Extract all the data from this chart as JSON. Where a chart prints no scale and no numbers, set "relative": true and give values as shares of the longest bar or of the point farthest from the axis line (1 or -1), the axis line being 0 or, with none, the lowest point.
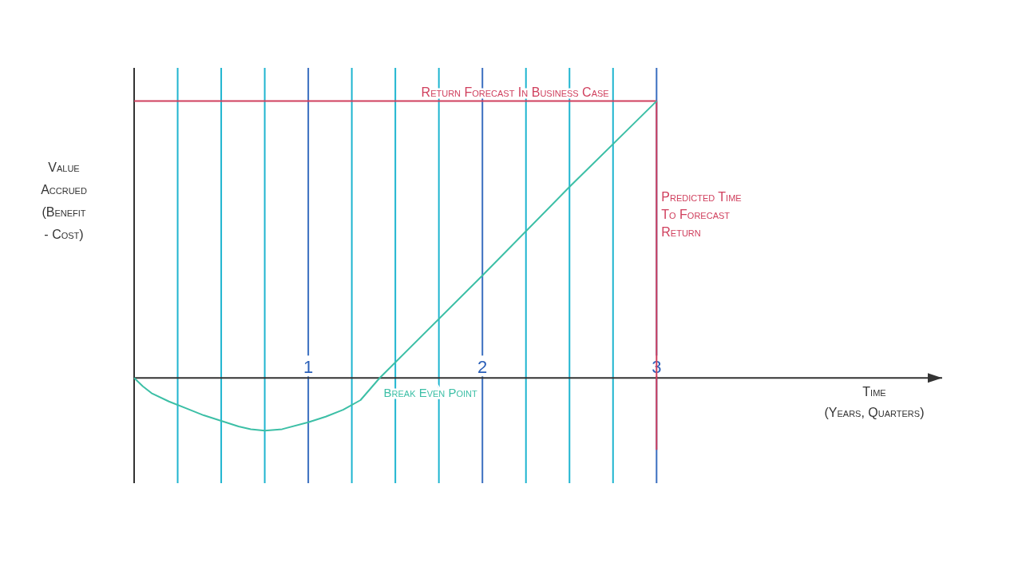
{
  "chart_data": {
    "type": "line",
    "relative": true,
    "xlabel": "Time (Years, Quarters)",
    "ylabel": "Value Accrued (Benefit - Cost)",
    "xlim": [
      0,
      4.64
    ],
    "xticks": [
      {
        "value": 0.25,
        "label": null
      },
      {
        "value": 0.5,
        "label": null
      },
      {
        "value": 0.75,
        "label": null
      },
      1,
      {
        "value": 1.25,
        "label": null
      },
      {
        "value": 1.5,
        "label": null
      },
      {
        "value": 1.75,
        "label": null
      },
      2,
      {
        "value": 2.25,
        "label": null
      },
      {
        "value": 2.5,
        "label": null
      },
      {
        "value": 2.75,
        "label": null
      },
      3
    ],
    "grid": "x",
    "marker": "none",
    "line_style": "solid",
    "series": [
      {
        "color": "#3cbfa6",
        "x": [
          0,
          0.05,
          0.1,
          0.2,
          0.3,
          0.4,
          0.5,
          0.6,
          0.67,
          0.75,
          0.85,
          1,
          1.1,
          1.2,
          1.3,
          1.41,
          2,
          2.5,
          3
        ],
        "values": [
          0,
          -0.03,
          -0.055,
          -0.085,
          -0.11,
          -0.135,
          -0.155,
          -0.175,
          -0.185,
          -0.19,
          -0.185,
          -0.16,
          -0.14,
          -0.115,
          -0.08,
          0,
          0.37,
          0.69,
          1
        ]
      }
    ],
    "ref_lines": [
      {
        "axis": "y",
        "value": 1,
        "label": "Return Forecast In Business Case",
        "color": "#d0405e"
      },
      {
        "axis": "x",
        "value": 3,
        "label": "Predicted Time To Forecast Return",
        "color": "#d0405e"
      }
    ],
    "annotations": [
      {
        "text": "Break Even Point",
        "x": 1.41,
        "y": 0
      }
    ]
  }
}
